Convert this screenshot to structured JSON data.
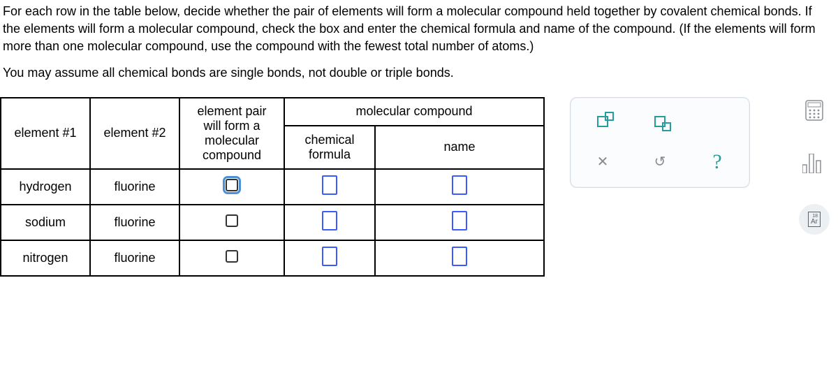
{
  "instructions": {
    "para1": "For each row in the table below, decide whether the pair of elements will form a molecular compound held together by covalent chemical bonds. If the elements will form a molecular compound, check the box and enter the chemical formula and name of the compound. (If the elements will form more than one molecular compound, use the compound with the fewest total number of atoms.)",
    "para2": "You may assume all chemical bonds are single bonds, not double or triple bonds."
  },
  "table": {
    "headers": {
      "element1": "element #1",
      "element2": "element #2",
      "pair": "element pair will form a molecular compound",
      "mc_title": "molecular compound",
      "formula": "chemical formula",
      "name": "name"
    },
    "rows": [
      {
        "el1": "hydrogen",
        "el2": "fluorine",
        "focused": true
      },
      {
        "el1": "sodium",
        "el2": "fluorine",
        "focused": false
      },
      {
        "el1": "nitrogen",
        "el2": "fluorine",
        "focused": false
      }
    ]
  },
  "toolbox": {
    "superscript_label": "superscript",
    "subscript_label": "subscript",
    "close": "✕",
    "reset": "↺",
    "help": "?"
  },
  "sidebar": {
    "calculator": "calculator",
    "bar_chart": "bar-chart",
    "periodic": {
      "number": "18",
      "symbol": "Ar"
    }
  }
}
